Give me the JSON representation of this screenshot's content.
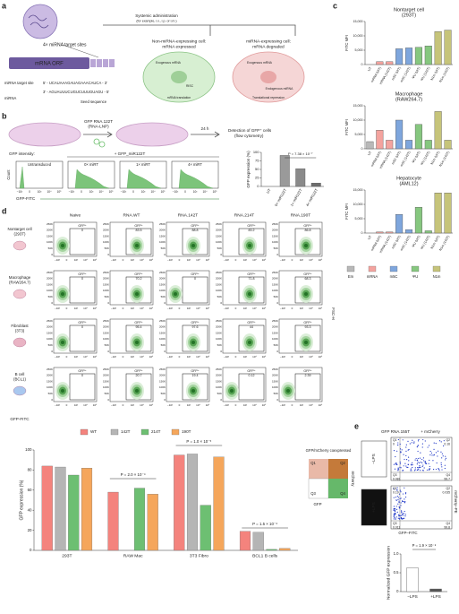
{
  "panel_labels": [
    "a",
    "b",
    "c",
    "d",
    "e"
  ],
  "schematic_a": {
    "target_sites": "4× miRNA target sites",
    "orf": "mRNA ORF",
    "target_site_label": "miRNA target site",
    "mirna_label": "miRNA",
    "seq_top": "5′ - UCAUAAAGAUAGAAACAUCA - 3′",
    "seq_bottom": "3′ - AGUAUUUCUGUCUUUGUAGU - 5′",
    "seed": "Seed sequence",
    "admin": "Systemic administration",
    "admin_note": "(for example, i.v., i.p. or i.m.)",
    "cell1": [
      "Non-miRNA-expressing cell:",
      "mRNA expressed"
    ],
    "cell2": [
      "miRNA-expressing cell:",
      "mRNA degraded"
    ],
    "cell1_parts": [
      "Exogenous mRNA",
      "RISC",
      "mRNA translation"
    ],
    "cell2_parts": [
      "Exogenous mRNA",
      "Endogenous miRNA",
      "Translational repression"
    ]
  },
  "schematic_b": {
    "agent": [
      "GFP RNA.122T",
      "(RNA-LNP)"
    ],
    "time": "24 h",
    "detect": [
      "Detection of GFP⁺ cells",
      "(flow cytometry)"
    ]
  },
  "histograms": {
    "intensity_label": "GFP intensity:",
    "group_label": "+ GFP_miR122T",
    "titles": [
      "Untransduced",
      "0× miRT",
      "1× miRT",
      "4× miRT"
    ],
    "ylabel": "Count",
    "xlabel": "GFP-FITC",
    "xticks": [
      "−10³",
      "0",
      "10³",
      "10⁴",
      "10⁵"
    ]
  },
  "c_legend": [
    {
      "name": "Em",
      "color": "#b8b8b8"
    },
    {
      "name": "mRNA",
      "color": "#f4a39e"
    },
    {
      "name": "m5C",
      "color": "#7ea6dd"
    },
    {
      "name": "ΨU",
      "color": "#86c77f"
    },
    {
      "name": "N1m",
      "color": "#c6c47a"
    }
  ],
  "flow_grid": {
    "columns": [
      "Naive",
      "RNA.WT",
      "RNA.142T",
      "RNA.214T",
      "RNA.190T"
    ],
    "rows": [
      [
        "Nontarget cell",
        "(293T)"
      ],
      [
        "Macrophage",
        "(RAW264.7)"
      ],
      [
        "Fibroblast",
        "(3T3)"
      ],
      [
        "B cell",
        "(BCL1)"
      ]
    ],
    "gate_label": "GFP⁺",
    "values": [
      [
        0,
        83.5,
        88.8,
        83.2,
        86.8
      ],
      [
        0,
        70.2,
        0,
        71.8,
        68.3
      ],
      [
        0,
        95.4,
        97.6,
        44.0,
        93.3
      ],
      [
        0,
        20.7,
        19.4,
        0.12,
        2.39
      ]
    ],
    "yticks": [
      "250K",
      "200K",
      "150K",
      "100K",
      "50K",
      "0"
    ],
    "xticks": [
      "−10³",
      "0",
      "10³",
      "10⁴",
      "10⁵"
    ],
    "ylabel": "FSC-H",
    "xlabel": "GFP-FITC"
  },
  "coexpression_legend": {
    "title": "GFP/mCherry coexpressed",
    "quadrants": [
      "Q1",
      "Q2",
      "Q3",
      "Q4"
    ],
    "y": "mCherry",
    "x": "GFP"
  },
  "flow_e": {
    "title": [
      "GFP RNA.155T",
      "+ mCherry"
    ],
    "conditions": [
      "−LPS",
      "+LPS"
    ],
    "quadrant_names": [
      "Q1",
      "Q2",
      "Q3",
      "Q4"
    ],
    "quadrants": [
      [
        0,
        0.16,
        0.081,
        99.7
      ],
      [
        0.19,
        0.035,
        0.011,
        99.8
      ]
    ],
    "ylabel": "mCherry–PE",
    "xlabel": "GFP–FITC"
  },
  "chart_data": [
    {
      "type": "bar",
      "ylabel": "GFP expression (%)",
      "categories": [
        "UT",
        "0× miR122T",
        "1× miR122T",
        "4× miR122T"
      ],
      "values": [
        0,
        91,
        52,
        10
      ],
      "colors": [
        "#c8c8c8",
        "#9a9a9a",
        "#8a8a8a",
        "#6e6e6e"
      ],
      "ylim": [
        0,
        100
      ],
      "yticks": [
        0,
        25,
        50,
        75,
        100
      ],
      "annotation": "P = 7.38 × 10⁻⁷"
    },
    {
      "type": "bar",
      "title": "Nontarget cell",
      "subtitle": "(293T)",
      "ylabel": "FITC MFI",
      "categories": [
        "UT",
        "mRNA (WT)",
        "mRNA (142T)",
        "m5C (WT)",
        "m5C (142T)",
        "ΨU (WT)",
        "ΨU (142T)",
        "N1m (WT)",
        "N1m (142T)"
      ],
      "values": [
        0,
        1000,
        1000,
        5500,
        5800,
        6000,
        6500,
        11500,
        12000
      ],
      "colors": [
        "#b8b8b8",
        "#f4a39e",
        "#f4a39e",
        "#7ea6dd",
        "#7ea6dd",
        "#86c77f",
        "#86c77f",
        "#c6c47a",
        "#c6c47a"
      ],
      "ylim": [
        0,
        15000
      ],
      "yticks": [
        0,
        {
          "value": 5000,
          "label": "5,000"
        },
        {
          "value": 10000,
          "label": "10,000"
        },
        {
          "value": 15000,
          "label": "15,000"
        }
      ]
    },
    {
      "type": "bar",
      "title": "Macrophage",
      "subtitle": "(RAW264.7)",
      "ylabel": "FITC MFI",
      "categories": [
        "UT",
        "mRNA (WT)",
        "mRNA (142T)",
        "m5C (WT)",
        "m5C (142T)",
        "ΨU (WT)",
        "ΨU (142T)",
        "N1m (WT)",
        "N1m (142T)"
      ],
      "values": [
        2500,
        6500,
        3000,
        10000,
        3000,
        8500,
        3000,
        13000,
        3000
      ],
      "colors": [
        "#b8b8b8",
        "#f4a39e",
        "#f4a39e",
        "#7ea6dd",
        "#7ea6dd",
        "#86c77f",
        "#86c77f",
        "#c6c47a",
        "#c6c47a"
      ],
      "ylim": [
        0,
        15000
      ],
      "yticks": [
        0,
        {
          "value": 5000,
          "label": "5,000"
        },
        {
          "value": 10000,
          "label": "10,000"
        },
        {
          "value": 15000,
          "label": "15,000"
        }
      ]
    },
    {
      "type": "bar",
      "title": "Hepatocyte",
      "subtitle": "(AML12)",
      "ylabel": "FITC MFI",
      "categories": [
        "UT",
        "mRNA (WT)",
        "mRNA (142T)",
        "m5C (WT)",
        "m5C (142T)",
        "ΨU (WT)",
        "ΨU (142T)",
        "N1m (WT)",
        "N1m (142T)"
      ],
      "values": [
        0,
        400,
        400,
        6500,
        1200,
        9000,
        800,
        14000,
        14000
      ],
      "colors": [
        "#b8b8b8",
        "#f4a39e",
        "#f4a39e",
        "#7ea6dd",
        "#7ea6dd",
        "#86c77f",
        "#86c77f",
        "#c6c47a",
        "#c6c47a"
      ],
      "ylim": [
        0,
        15000
      ],
      "yticks": [
        0,
        {
          "value": 5000,
          "label": "5,000"
        },
        {
          "value": 10000,
          "label": "10,000"
        },
        {
          "value": 15000,
          "label": "15,000"
        }
      ]
    },
    {
      "type": "grouped_bar",
      "ylabel": "GFP expression (%)",
      "categories": [
        "293T",
        "RAW Mac",
        "3T3 Fibro",
        "BCL1 B cells"
      ],
      "series": [
        {
          "name": "WT",
          "color": "#f4837d",
          "values": [
            84,
            58,
            95,
            19
          ]
        },
        {
          "name": "142T",
          "color": "#b5b5b5",
          "values": [
            83,
            0,
            96,
            18
          ]
        },
        {
          "name": "214T",
          "color": "#6dbf72",
          "values": [
            75,
            62,
            45,
            1
          ]
        },
        {
          "name": "190T",
          "color": "#f5a65b",
          "values": [
            82,
            56,
            93,
            2
          ]
        }
      ],
      "ylim": [
        0,
        100
      ],
      "yticks": [
        0,
        20,
        40,
        60,
        80,
        100
      ],
      "annotations": [
        "P = 2.0 × 10⁻⁴",
        "P = 1.0 × 10⁻⁵",
        "P = 1.5 × 10⁻⁴"
      ]
    },
    {
      "type": "bar",
      "ylabel": "Normalized GFP expression",
      "categories": [
        "−LPS",
        "+LPS"
      ],
      "values": [
        0.63,
        0.07
      ],
      "colors": [
        "#ffffff",
        "#555555"
      ],
      "ylim": [
        0,
        1
      ],
      "yticks": [
        0,
        0.5,
        {
          "value": 1,
          "label": "1.0"
        }
      ],
      "annotation": "P = 1.9 × 10⁻⁸"
    }
  ]
}
